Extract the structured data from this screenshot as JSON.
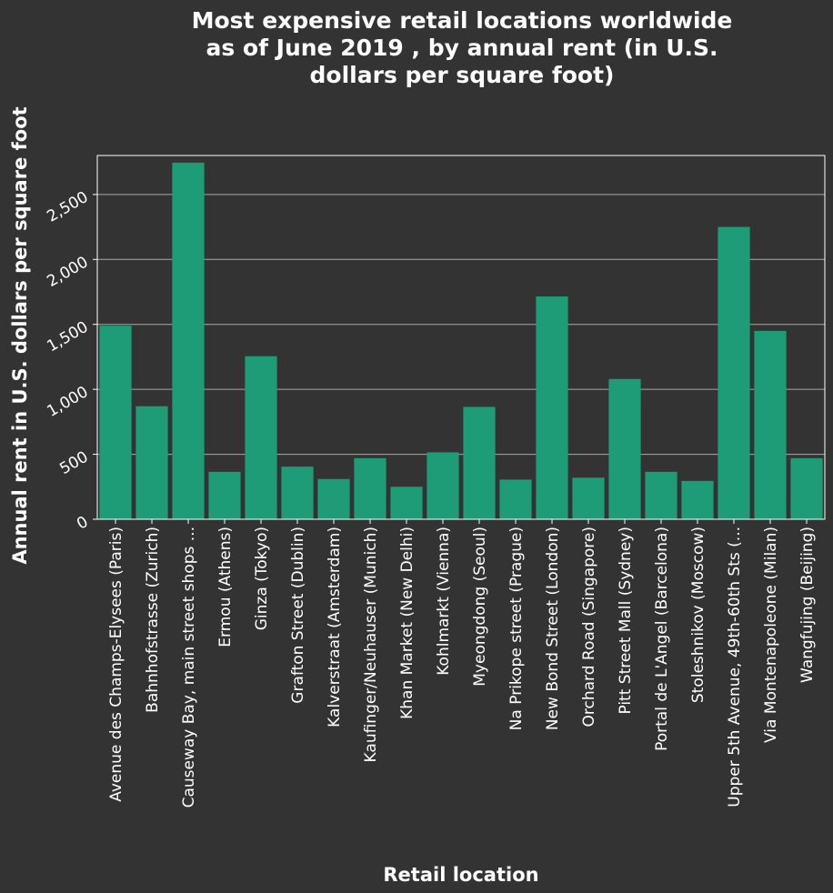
{
  "chart_data": {
    "type": "bar",
    "title": "Most expensive retail locations worldwide as of June 2019 , by annual rent (in U.S. dollars per square foot)",
    "title_lines": [
      "Most expensive retail locations worldwide",
      "as of June 2019 , by annual rent (in U.S.",
      "dollars per square foot)"
    ],
    "xlabel": "Retail location",
    "ylabel": "Annual rent in U.S. dollars per square foot",
    "ylim": [
      0,
      2800
    ],
    "yticks": [
      0,
      500,
      1000,
      1500,
      2000,
      2500
    ],
    "ytick_labels": [
      "0",
      "500",
      "1,000",
      "1,500",
      "2,000",
      "2,500"
    ],
    "grid": true,
    "bar_color": "#1e9c78",
    "background": "#333333",
    "categories": [
      "Avenue des Champs-Elysees (Paris)",
      "Bahnhofstrasse (Zurich)",
      "Causeway Bay, main street shops ...",
      "Ermou (Athens)",
      "Ginza (Tokyo)",
      "Grafton Street (Dublin)",
      "Kalverstraat (Amsterdam)",
      "Kaufinger/Neuhauser (Munich)",
      "Khan Market (New Delhi)",
      "Kohlmarkt (Vienna)",
      "Myeongdong (Seoul)",
      "Na Prikope street (Prague)",
      "New Bond Street (London)",
      "Orchard Road (Singapore)",
      "Pitt Street Mall (Sydney)",
      "Portal de L'Angel (Barcelona)",
      "Stoleshnikov (Moscow)",
      "Upper 5th Avenue, 49th-60th Sts (...",
      "Via Montenapoleone (Milan)",
      "Wangfujing (Beijing)"
    ],
    "values": [
      1490,
      870,
      2745,
      365,
      1255,
      405,
      310,
      470,
      250,
      515,
      865,
      305,
      1715,
      320,
      1080,
      365,
      295,
      2250,
      1450,
      470
    ]
  }
}
